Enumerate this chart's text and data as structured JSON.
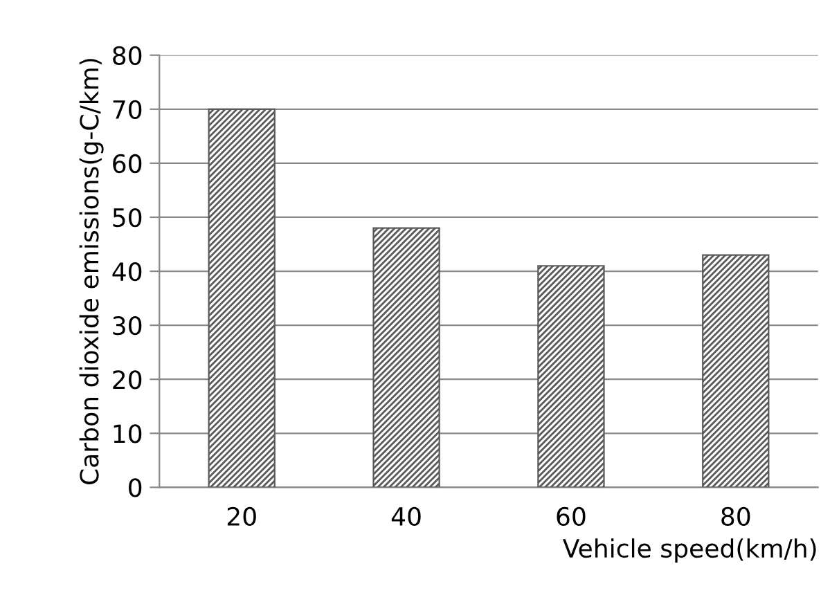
{
  "chart_data": {
    "type": "bar",
    "xlabel": "Vehicle speed(km/h)",
    "ylabel": "Carbon dioxide emissions(g-C/km)",
    "categories": [
      "20",
      "40",
      "60",
      "80"
    ],
    "values": [
      70,
      48,
      41,
      43
    ],
    "color": "#595959",
    "ylim": [
      0,
      80
    ],
    "yticks": [
      0,
      10,
      20,
      30,
      40,
      50,
      60,
      70,
      80
    ],
    "grid": "y"
  }
}
